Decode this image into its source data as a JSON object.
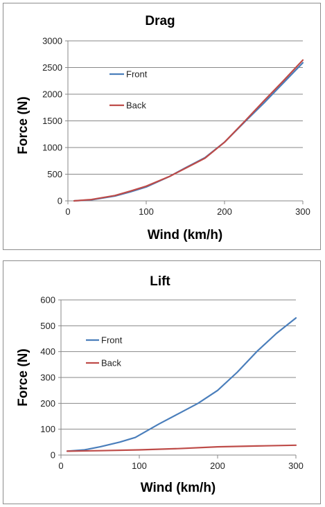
{
  "colors": {
    "front": "#4a7ebb",
    "back": "#be4b48",
    "grid": "#878787",
    "axis": "#878787"
  },
  "chart_data": [
    {
      "id": "drag",
      "type": "line",
      "title": "Drag",
      "xlabel": "Wind (km/h)",
      "ylabel": "Force (N)",
      "xlim": [
        0,
        300
      ],
      "ylim": [
        0,
        3000
      ],
      "xticks": [
        0,
        100,
        200,
        300
      ],
      "yticks": [
        0,
        500,
        1000,
        1500,
        2000,
        2500,
        3000
      ],
      "xtick_labels": [
        "0",
        "100",
        "200",
        "300"
      ],
      "ytick_labels": [
        "0",
        "500",
        "1000",
        "1500",
        "2000",
        "2500",
        "3000"
      ],
      "grid": "horizontal",
      "legend_position": "upper-left",
      "series": [
        {
          "name": "Front",
          "x": [
            8,
            30,
            60,
            80,
            100,
            130,
            150,
            175,
            200,
            225,
            250,
            275,
            300
          ],
          "y": [
            0,
            20,
            90,
            170,
            260,
            460,
            620,
            810,
            1100,
            1470,
            1830,
            2210,
            2590
          ]
        },
        {
          "name": "Back",
          "x": [
            8,
            30,
            60,
            80,
            100,
            130,
            150,
            175,
            200,
            225,
            250,
            275,
            300
          ],
          "y": [
            0,
            25,
            100,
            185,
            275,
            460,
            610,
            800,
            1100,
            1480,
            1870,
            2250,
            2640
          ]
        }
      ]
    },
    {
      "id": "lift",
      "type": "line",
      "title": "Lift",
      "xlabel": "Wind (km/h)",
      "ylabel": "Force (N)",
      "xlim": [
        0,
        300
      ],
      "ylim": [
        0,
        600
      ],
      "xticks": [
        0,
        100,
        200,
        300
      ],
      "yticks": [
        0,
        100,
        200,
        300,
        400,
        500,
        600
      ],
      "xtick_labels": [
        "0",
        "100",
        "200",
        "300"
      ],
      "ytick_labels": [
        "0",
        "100",
        "200",
        "300",
        "400",
        "500",
        "600"
      ],
      "grid": "horizontal",
      "legend_position": "upper-left",
      "series": [
        {
          "name": "Front",
          "x": [
            8,
            30,
            50,
            75,
            95,
            125,
            150,
            175,
            200,
            225,
            250,
            275,
            300
          ],
          "y": [
            15,
            20,
            32,
            50,
            68,
            120,
            160,
            200,
            250,
            320,
            400,
            470,
            530
          ]
        },
        {
          "name": "Back",
          "x": [
            8,
            50,
            100,
            150,
            200,
            250,
            300
          ],
          "y": [
            15,
            17,
            20,
            25,
            32,
            35,
            38
          ]
        }
      ]
    }
  ]
}
